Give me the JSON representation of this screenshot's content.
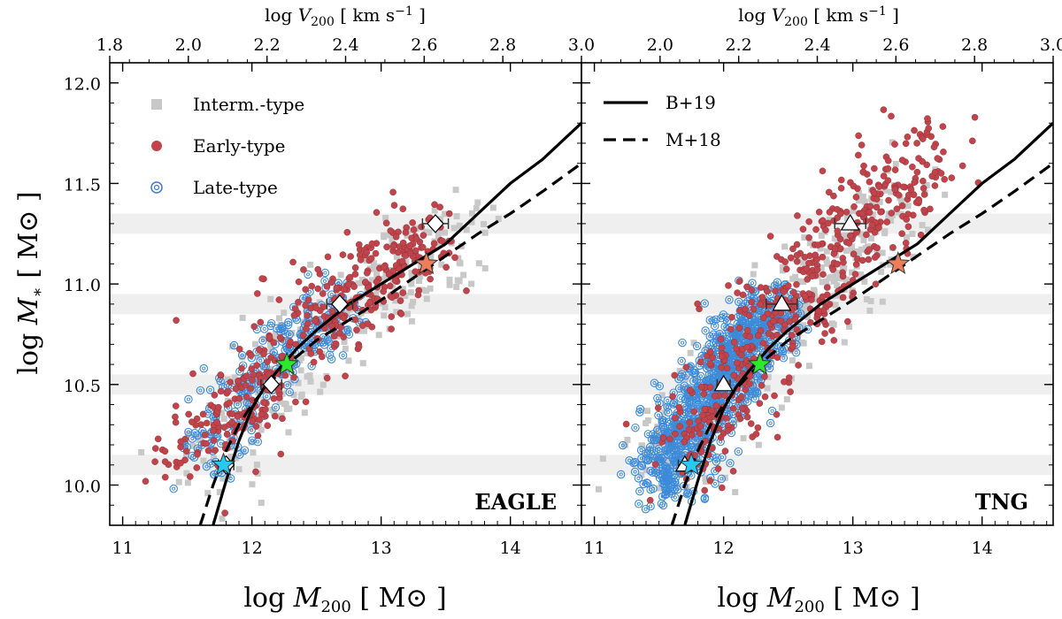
{
  "chart_data": [
    {
      "type": "scatter",
      "panel": "EAGLE",
      "xlabel": "log M200 [ M⊙ ]",
      "ylabel": "log M* [ M⊙ ]",
      "top_xlabel": "log V200 [ km s−1 ]",
      "xlim": [
        10.9,
        14.55
      ],
      "ylim": [
        9.8,
        12.1
      ],
      "top_xlim": [
        1.8,
        3.0
      ],
      "x_ticks": [
        11,
        12,
        13,
        14
      ],
      "y_ticks": [
        10.0,
        10.5,
        11.0,
        11.5,
        12.0
      ],
      "top_ticks": [
        1.8,
        2.0,
        2.2,
        2.4,
        2.6,
        2.8,
        3.0
      ],
      "legend_position": "top-left",
      "legend": [
        {
          "label": "Interm.-type",
          "marker": "square",
          "color": "#c8c8c8"
        },
        {
          "label": "Early-type",
          "marker": "circle",
          "color": "#c0444b"
        },
        {
          "label": "Late-type",
          "marker": "spiral",
          "color": "#3c78d0"
        }
      ],
      "shaded_bands": [
        [
          10.05,
          10.15
        ],
        [
          10.45,
          10.55
        ],
        [
          10.85,
          10.95
        ],
        [
          11.25,
          11.35
        ]
      ],
      "curves": [
        {
          "name": "B+19",
          "style": "solid",
          "points": [
            [
              11.7,
              9.8
            ],
            [
              11.8,
              10.02
            ],
            [
              11.9,
              10.22
            ],
            [
              12.0,
              10.38
            ],
            [
              12.1,
              10.49
            ],
            [
              12.2,
              10.57
            ],
            [
              12.35,
              10.68
            ],
            [
              12.5,
              10.77
            ],
            [
              12.75,
              10.9
            ],
            [
              13.0,
              11.0
            ],
            [
              13.25,
              11.1
            ],
            [
              13.5,
              11.2
            ],
            [
              13.75,
              11.35
            ],
            [
              14.0,
              11.5
            ],
            [
              14.25,
              11.62
            ],
            [
              14.55,
              11.8
            ]
          ]
        },
        {
          "name": "M+18",
          "style": "dashed",
          "points": [
            [
              11.6,
              9.8
            ],
            [
              11.7,
              10.0
            ],
            [
              11.8,
              10.17
            ],
            [
              11.9,
              10.3
            ],
            [
              12.0,
              10.4
            ],
            [
              12.1,
              10.48
            ],
            [
              12.2,
              10.55
            ],
            [
              12.35,
              10.64
            ],
            [
              12.5,
              10.72
            ],
            [
              12.75,
              10.82
            ],
            [
              13.0,
              10.92
            ],
            [
              13.25,
              11.03
            ],
            [
              13.5,
              11.14
            ],
            [
              13.75,
              11.25
            ],
            [
              14.0,
              11.35
            ],
            [
              14.25,
              11.46
            ],
            [
              14.55,
              11.6
            ]
          ]
        }
      ],
      "median_markers": {
        "shape": "diamond",
        "points": [
          [
            11.8,
            10.1,
            0.06
          ],
          [
            12.15,
            10.5,
            0.08
          ],
          [
            12.68,
            10.9,
            0.1
          ],
          [
            13.42,
            11.3,
            0.1
          ]
        ]
      },
      "star_markers": [
        {
          "x": 11.78,
          "y": 10.1,
          "color": "#29c7f2"
        },
        {
          "x": 12.27,
          "y": 10.6,
          "color": "#2ee82e"
        },
        {
          "x": 13.35,
          "y": 11.1,
          "color": "#f07d5a"
        }
      ],
      "scatter_generation": {
        "early_center": [
          [
            11.5,
            10.15
          ],
          [
            12.0,
            10.45
          ],
          [
            12.5,
            10.85
          ],
          [
            13.0,
            11.05
          ],
          [
            13.4,
            11.25
          ]
        ],
        "late_center": [
          [
            11.6,
            10.1
          ],
          [
            12.0,
            10.5
          ],
          [
            12.4,
            10.75
          ],
          [
            12.7,
            10.9
          ]
        ],
        "interm_center": [
          [
            11.6,
            10.05
          ],
          [
            12.1,
            10.45
          ],
          [
            12.6,
            10.8
          ],
          [
            13.1,
            11.0
          ],
          [
            13.6,
            11.3
          ]
        ]
      }
    },
    {
      "type": "scatter",
      "panel": "TNG",
      "xlabel": "log M200 [ M⊙ ]",
      "top_xlabel": "log V200 [ km s−1 ]",
      "xlim": [
        10.9,
        14.55
      ],
      "ylim": [
        9.8,
        12.1
      ],
      "top_xlim": [
        1.8,
        3.0
      ],
      "x_ticks": [
        11,
        12,
        13,
        14
      ],
      "top_ticks": [
        2.0,
        2.2,
        2.4,
        2.6,
        2.8,
        3.0
      ],
      "legend_position": "top-left",
      "legend": [
        {
          "label": "B+19",
          "style": "solid"
        },
        {
          "label": "M+18",
          "style": "dashed"
        }
      ],
      "shaded_bands": [
        [
          10.05,
          10.15
        ],
        [
          10.45,
          10.55
        ],
        [
          10.85,
          10.95
        ],
        [
          11.25,
          11.35
        ]
      ],
      "curves": [
        {
          "name": "B+19",
          "style": "solid",
          "points": [
            [
              11.7,
              9.8
            ],
            [
              11.8,
              10.02
            ],
            [
              11.9,
              10.22
            ],
            [
              12.0,
              10.38
            ],
            [
              12.1,
              10.49
            ],
            [
              12.2,
              10.57
            ],
            [
              12.35,
              10.68
            ],
            [
              12.5,
              10.77
            ],
            [
              12.75,
              10.9
            ],
            [
              13.0,
              11.0
            ],
            [
              13.25,
              11.1
            ],
            [
              13.5,
              11.2
            ],
            [
              13.75,
              11.35
            ],
            [
              14.0,
              11.5
            ],
            [
              14.25,
              11.62
            ],
            [
              14.55,
              11.8
            ]
          ]
        },
        {
          "name": "M+18",
          "style": "dashed",
          "points": [
            [
              11.6,
              9.8
            ],
            [
              11.7,
              10.0
            ],
            [
              11.8,
              10.17
            ],
            [
              11.9,
              10.3
            ],
            [
              12.0,
              10.4
            ],
            [
              12.1,
              10.48
            ],
            [
              12.2,
              10.55
            ],
            [
              12.35,
              10.64
            ],
            [
              12.5,
              10.72
            ],
            [
              12.75,
              10.82
            ],
            [
              13.0,
              10.92
            ],
            [
              13.25,
              11.03
            ],
            [
              13.5,
              11.14
            ],
            [
              13.75,
              11.25
            ],
            [
              14.0,
              11.35
            ],
            [
              14.25,
              11.46
            ],
            [
              14.55,
              11.6
            ]
          ]
        }
      ],
      "median_markers": {
        "shape": "triangle",
        "points": [
          [
            11.7,
            10.1,
            0.05
          ],
          [
            12.0,
            10.5,
            0.05
          ],
          [
            12.45,
            10.9,
            0.12
          ],
          [
            12.98,
            11.3,
            0.12
          ]
        ]
      },
      "star_markers": [
        {
          "x": 11.75,
          "y": 10.1,
          "color": "#29c7f2"
        },
        {
          "x": 12.28,
          "y": 10.6,
          "color": "#2ee82e"
        },
        {
          "x": 13.35,
          "y": 11.1,
          "color": "#f07d5a"
        }
      ],
      "scatter_generation": {
        "early_center": [
          [
            11.7,
            10.1
          ],
          [
            12.0,
            10.5
          ],
          [
            12.4,
            10.85
          ],
          [
            12.8,
            11.1
          ],
          [
            13.2,
            11.4
          ],
          [
            13.6,
            11.7
          ]
        ],
        "late_center": [
          [
            11.5,
            10.0
          ],
          [
            11.8,
            10.35
          ],
          [
            12.1,
            10.65
          ],
          [
            12.4,
            10.9
          ]
        ],
        "interm_center": [
          [
            11.4,
            10.0
          ],
          [
            11.9,
            10.4
          ],
          [
            12.4,
            10.8
          ],
          [
            12.9,
            11.1
          ],
          [
            13.4,
            11.45
          ]
        ]
      }
    }
  ],
  "labels": {
    "eagle": "EAGLE",
    "tng": "TNG",
    "legend_interm": "Interm.-type",
    "legend_early": "Early-type",
    "legend_late": "Late-type",
    "legend_b19": "B+19",
    "legend_m18": "M+18"
  }
}
